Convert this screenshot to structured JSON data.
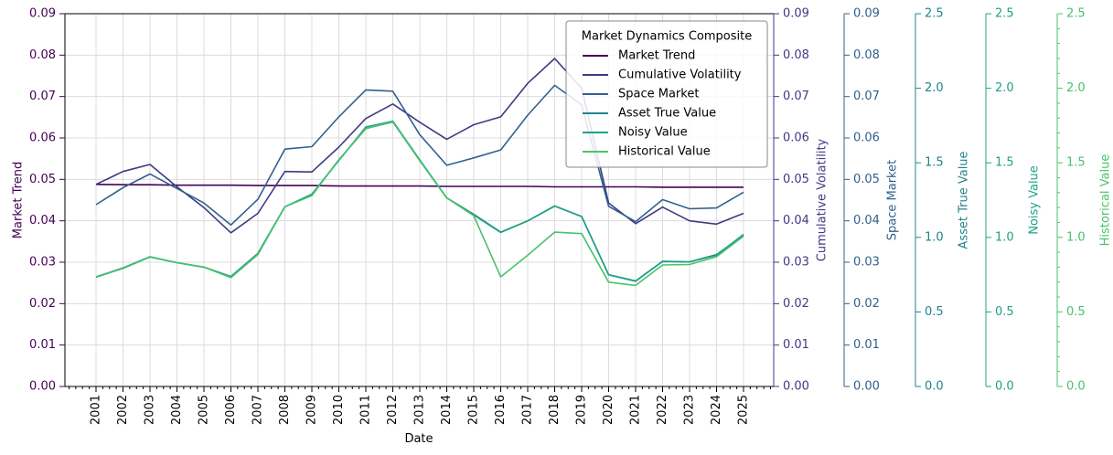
{
  "chart_data": {
    "type": "line",
    "legend": {
      "title": "Market Dynamics Composite",
      "placement": "top-right"
    },
    "xlabel": "Date",
    "grid": true,
    "categories": [
      "2001",
      "2002",
      "2003",
      "2004",
      "2005",
      "2006",
      "2007",
      "2008",
      "2009",
      "2010",
      "2011",
      "2012",
      "2013",
      "2014",
      "2015",
      "2016",
      "2017",
      "2018",
      "2019",
      "2020",
      "2021",
      "2022",
      "2023",
      "2024",
      "2025"
    ],
    "axes": [
      {
        "key": "market_trend",
        "label": "Market Trend",
        "side": "left",
        "color": "#440154",
        "ylim": [
          0,
          0.09
        ],
        "ticks": [
          "0.00",
          "0.01",
          "0.02",
          "0.03",
          "0.04",
          "0.05",
          "0.06",
          "0.07",
          "0.08",
          "0.09"
        ]
      },
      {
        "key": "cumulative_volatility",
        "label": "Cumulative Volatility",
        "side": "right",
        "color": "#3e3a83",
        "ylim": [
          0,
          0.09
        ],
        "ticks": [
          "0.00",
          "0.01",
          "0.02",
          "0.03",
          "0.04",
          "0.05",
          "0.06",
          "0.07",
          "0.08",
          "0.09"
        ]
      },
      {
        "key": "space_market",
        "label": "Space Market",
        "side": "right",
        "color": "#31608e",
        "ylim": [
          0,
          0.09
        ],
        "ticks": [
          "0.00",
          "0.01",
          "0.02",
          "0.03",
          "0.04",
          "0.05",
          "0.06",
          "0.07",
          "0.08",
          "0.09"
        ]
      },
      {
        "key": "asset_true_value",
        "label": "Asset True Value",
        "side": "right",
        "color": "#21838d",
        "ylim": [
          0,
          2.5
        ],
        "ticks": [
          "0.0",
          "0.5",
          "1.0",
          "1.5",
          "2.0",
          "2.5"
        ]
      },
      {
        "key": "noisy_value",
        "label": "Noisy Value",
        "side": "right",
        "color": "#1fa187",
        "ylim": [
          0,
          2.5
        ],
        "ticks": [
          "0.0",
          "0.5",
          "1.0",
          "1.5",
          "2.0",
          "2.5"
        ]
      },
      {
        "key": "historical_value",
        "label": "Historical Value",
        "side": "right",
        "color": "#4ac26d",
        "ylim": [
          0,
          2.5
        ],
        "ticks": [
          "0.0",
          "0.5",
          "1.0",
          "1.5",
          "2.0",
          "2.5"
        ]
      }
    ],
    "series": [
      {
        "name": "Market Trend",
        "axis": 0,
        "color": "#440154",
        "values": [
          0.0488,
          0.0487,
          0.0487,
          0.0486,
          0.0486,
          0.0486,
          0.0485,
          0.0485,
          0.0485,
          0.0484,
          0.0484,
          0.0484,
          0.0484,
          0.0483,
          0.0483,
          0.0483,
          0.0483,
          0.0482,
          0.0482,
          0.0482,
          0.0482,
          0.0481,
          0.0481,
          0.0481,
          0.0481
        ]
      },
      {
        "name": "Cumulative Volatility",
        "axis": 1,
        "color": "#3e3a83",
        "values": [
          0.0488,
          0.0519,
          0.0536,
          0.0482,
          0.0432,
          0.0371,
          0.0418,
          0.0519,
          0.0518,
          0.0578,
          0.0647,
          0.0682,
          0.0638,
          0.0597,
          0.0632,
          0.0651,
          0.0732,
          0.0792,
          0.072,
          0.0443,
          0.0393,
          0.0433,
          0.04,
          0.0392,
          0.0418
        ]
      },
      {
        "name": "Space Market",
        "axis": 2,
        "color": "#31608e",
        "values": [
          0.0439,
          0.048,
          0.0513,
          0.0478,
          0.0443,
          0.039,
          0.0452,
          0.0573,
          0.0579,
          0.0651,
          0.0716,
          0.0713,
          0.0608,
          0.0534,
          0.0552,
          0.0571,
          0.0655,
          0.0727,
          0.068,
          0.0435,
          0.0398,
          0.0451,
          0.0429,
          0.0431,
          0.0469
        ]
      },
      {
        "name": "Asset True Value",
        "axis": 3,
        "color": "#21838d",
        "values": [
          0.735,
          0.795,
          0.87,
          0.83,
          0.8,
          0.738,
          0.893,
          1.205,
          1.285,
          1.52,
          1.73,
          1.775,
          1.515,
          1.265,
          1.155,
          1.035,
          1.11,
          1.21,
          1.14,
          0.75,
          0.708,
          0.838,
          0.835,
          0.885,
          1.015
        ]
      },
      {
        "name": "Noisy Value",
        "axis": 4,
        "color": "#1fa187",
        "values": [
          0.733,
          0.792,
          0.868,
          0.83,
          0.8,
          0.735,
          0.89,
          1.205,
          1.29,
          1.515,
          1.74,
          1.78,
          1.52,
          1.265,
          1.15,
          1.033,
          1.11,
          1.21,
          1.14,
          0.748,
          0.705,
          0.84,
          0.835,
          0.88,
          1.02
        ]
      },
      {
        "name": "Historical Value",
        "axis": 5,
        "color": "#4ac26d",
        "values": [
          0.733,
          0.792,
          0.868,
          0.83,
          0.8,
          0.73,
          0.885,
          1.205,
          1.28,
          1.52,
          1.73,
          1.78,
          1.515,
          1.265,
          1.145,
          0.735,
          0.88,
          1.035,
          1.025,
          0.7,
          0.678,
          0.815,
          0.818,
          0.87,
          1.008
        ]
      }
    ]
  }
}
